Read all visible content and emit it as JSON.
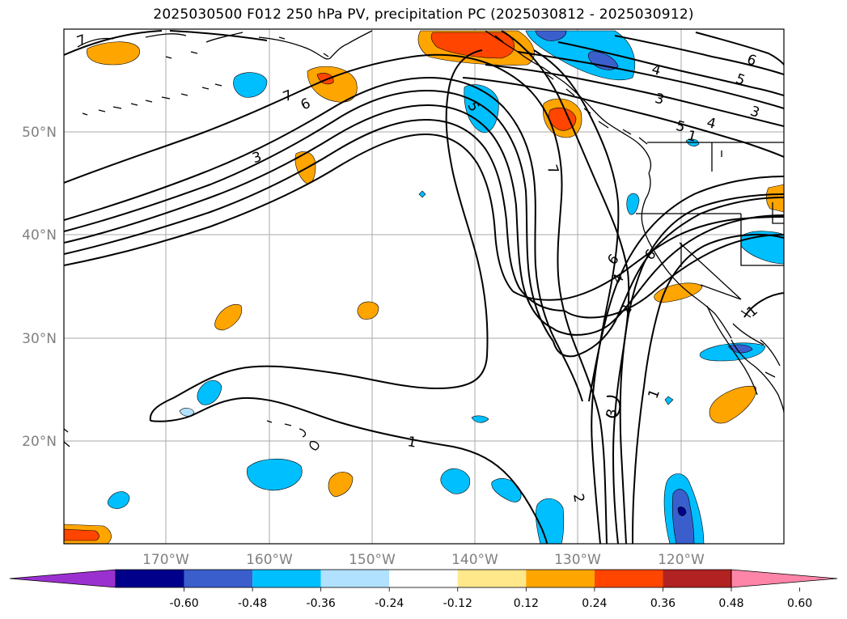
{
  "title": "2025030500 F012 250 hPa PV, precipitation PC (2025030812 - 2025030912)",
  "latitude_labels": [
    "50°N",
    "40°N",
    "30°N",
    "20°N"
  ],
  "longitude_labels": [
    "170°W",
    "160°W",
    "150°W",
    "140°W",
    "130°W",
    "120°W"
  ],
  "colorbar": {
    "tick_labels": [
      "-0.60",
      "-0.48",
      "-0.36",
      "-0.24",
      "-0.12",
      "0.12",
      "0.24",
      "0.36",
      "0.48",
      "0.60"
    ],
    "colors": [
      "#9b30d0",
      "#00008b",
      "#3a5fcd",
      "#00bfff",
      "#b0e2ff",
      "#ffffff",
      "#ffe88a",
      "#ffa500",
      "#ff4500",
      "#b22222",
      "#ff85a8"
    ]
  },
  "pv_contour_labels": [
    "7",
    "6",
    "3",
    "7",
    "6",
    "5",
    "4",
    "3",
    "5",
    "4",
    "3",
    "6",
    "5",
    "7",
    "6",
    "4",
    "2",
    "1",
    "1",
    "3",
    "1",
    "2",
    "1"
  ]
}
